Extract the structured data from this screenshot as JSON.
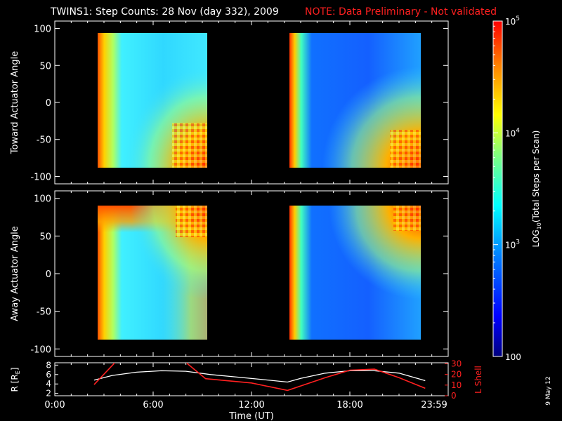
{
  "title": {
    "main": "TWINS1: Step Counts: 28 Nov (day 332), 2009",
    "note": "NOTE: Data Preliminary - Not validated"
  },
  "colors": {
    "background": "#000000",
    "axes": "#ffffff",
    "note": "#ff2020",
    "r_line": "#ffffff",
    "lshell_line": "#ff2020",
    "colormap": [
      "#00007f",
      "#0000ff",
      "#0080ff",
      "#00ffff",
      "#80ff80",
      "#ffff00",
      "#ff8000",
      "#ff0000"
    ]
  },
  "colorbar": {
    "label": "LOG10(Total Steps per Scan)",
    "label_base": "LOG",
    "label_sub": "10",
    "label_rest": "(Total Steps per Scan)",
    "scale": "log",
    "range": [
      100,
      100000
    ],
    "ticks": [
      {
        "value": 100,
        "label": "100"
      },
      {
        "value": 1000,
        "label": "10",
        "exp": "3"
      },
      {
        "value": 10000,
        "label": "10",
        "exp": "4"
      },
      {
        "value": 100000,
        "label": "10",
        "exp": "5"
      }
    ]
  },
  "date_stamp": "9 May 12",
  "chart_data": [
    {
      "type": "heatmap",
      "ylabel": "Toward Actuator Angle",
      "ylim": [
        -110,
        110
      ],
      "yticks": [
        -100,
        -50,
        0,
        50,
        100
      ],
      "xlim_hours": [
        0,
        24
      ],
      "data_intervals_ut": [
        [
          "2:20",
          "9:20"
        ],
        [
          "14:10",
          "22:40"
        ]
      ],
      "z_scale": "log",
      "z_range": [
        100,
        100000
      ]
    },
    {
      "type": "heatmap",
      "ylabel": "Away Actuator Angle",
      "ylim": [
        -110,
        110
      ],
      "yticks": [
        -100,
        -50,
        0,
        50,
        100
      ],
      "xlim_hours": [
        0,
        24
      ],
      "data_intervals_ut": [
        [
          "2:20",
          "9:20"
        ],
        [
          "14:10",
          "22:40"
        ]
      ],
      "z_scale": "log",
      "z_range": [
        100,
        100000
      ]
    },
    {
      "type": "line",
      "ylabel": "R [RE]",
      "ylabel_base": "R [R",
      "ylabel_sub": "E",
      "ylabel_end": "]",
      "ylim": [
        1.5,
        8.5
      ],
      "yticks": [
        2,
        4,
        6,
        8
      ],
      "y2label": "L Shell",
      "y2lim": [
        0,
        31
      ],
      "y2ticks": [
        0,
        10,
        20,
        30
      ],
      "xlabel": "Time (UT)",
      "xticks": [
        "0:00",
        "6:00",
        "12:00",
        "18:00",
        "23:59"
      ],
      "xtick_hours": [
        0,
        6,
        12,
        18,
        23.983
      ],
      "series": [
        {
          "name": "R",
          "x_hours": [
            2.4,
            3.5,
            5.0,
            6.5,
            8.0,
            9.5,
            11.0,
            12.5,
            14.2,
            15.0,
            16.5,
            18.0,
            19.5,
            21.0,
            22.6
          ],
          "values": [
            4.8,
            5.8,
            6.5,
            6.8,
            6.7,
            6.0,
            5.5,
            5.0,
            4.4,
            5.2,
            6.3,
            6.8,
            6.8,
            6.3,
            4.7
          ]
        },
        {
          "name": "L Shell",
          "x_hours": [
            2.4,
            3.6,
            3.7,
            8.0,
            8.1,
            9.2,
            12.0,
            14.2,
            16.5,
            18.0,
            19.5,
            21.0,
            22.6
          ],
          "values": [
            10.5,
            30,
            33,
            33,
            30,
            16,
            12,
            5,
            17,
            24,
            25,
            17,
            7
          ]
        }
      ]
    }
  ]
}
